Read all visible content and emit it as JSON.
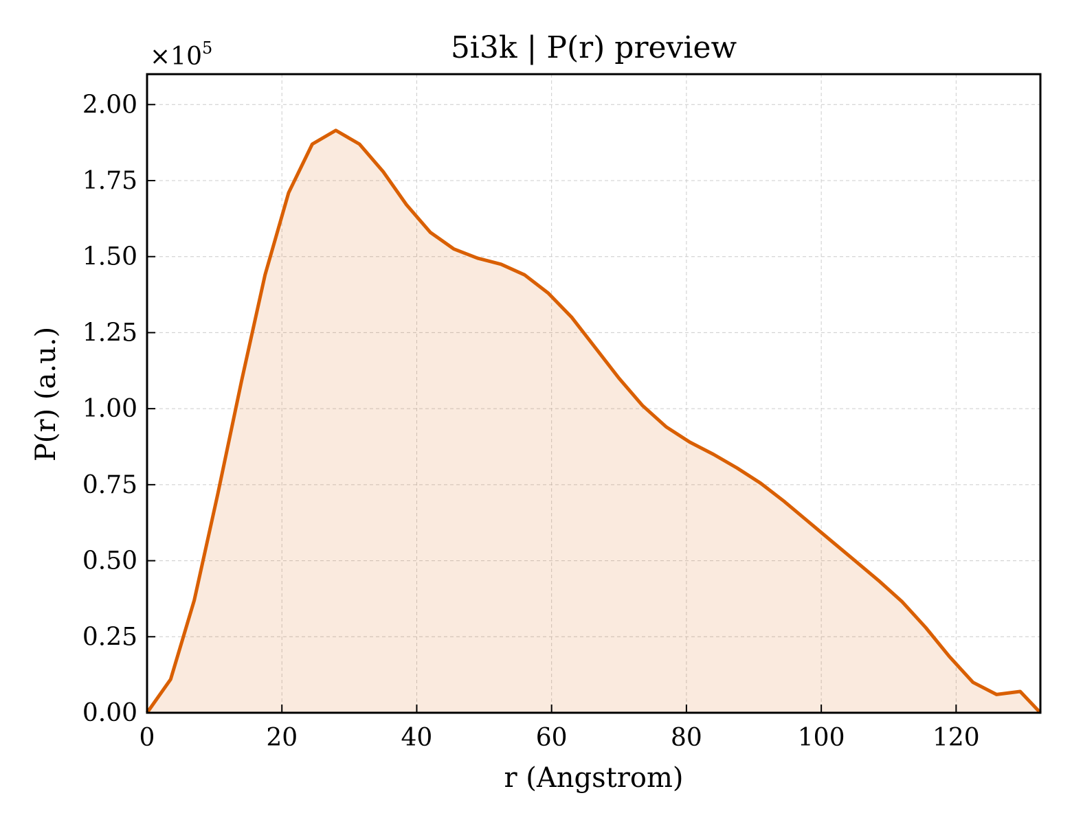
{
  "chart_data": {
    "type": "area",
    "title": "5i3k | P(r) preview",
    "xlabel": "r (Angstrom)",
    "ylabel": "P(r) (a.u.)",
    "y_multiplier": "×10",
    "y_multiplier_exp": "5",
    "xlim": [
      0,
      132.5
    ],
    "ylim": [
      0,
      2.1
    ],
    "y_scale": 100000,
    "xticks": [
      0,
      20,
      40,
      60,
      80,
      100,
      120
    ],
    "xtick_labels": [
      "0",
      "20",
      "40",
      "60",
      "80",
      "100",
      "120"
    ],
    "yticks": [
      0,
      0.25,
      0.5,
      0.75,
      1.0,
      1.25,
      1.5,
      1.75,
      2.0
    ],
    "ytick_labels": [
      "0.00",
      "0.25",
      "0.50",
      "0.75",
      "1.00",
      "1.25",
      "1.50",
      "1.75",
      "2.00"
    ],
    "grid": true,
    "colors": {
      "line": "#d95f02",
      "fill": "#d95f02",
      "fill_opacity": 0.13,
      "grid": "#cccccc"
    },
    "series": [
      {
        "x": [
          0,
          3.5,
          7,
          10.5,
          14,
          17.5,
          21,
          24.5,
          28,
          31.5,
          35,
          38.5,
          42,
          45.5,
          49,
          52.5,
          56,
          59.5,
          63,
          66.5,
          70,
          73.5,
          77,
          80.5,
          84,
          87.5,
          91,
          94.5,
          98,
          101.5,
          105,
          108.5,
          112,
          115.5,
          119,
          122.5,
          126,
          129.5,
          132.5
        ],
        "values": [
          0,
          0.11,
          0.37,
          0.72,
          1.09,
          1.44,
          1.71,
          1.87,
          1.915,
          1.87,
          1.78,
          1.67,
          1.58,
          1.525,
          1.495,
          1.475,
          1.44,
          1.38,
          1.3,
          1.2,
          1.1,
          1.01,
          0.94,
          0.89,
          0.85,
          0.805,
          0.755,
          0.695,
          0.63,
          0.565,
          0.5,
          0.435,
          0.365,
          0.28,
          0.185,
          0.1,
          0.06,
          0.07,
          0
        ]
      }
    ]
  }
}
